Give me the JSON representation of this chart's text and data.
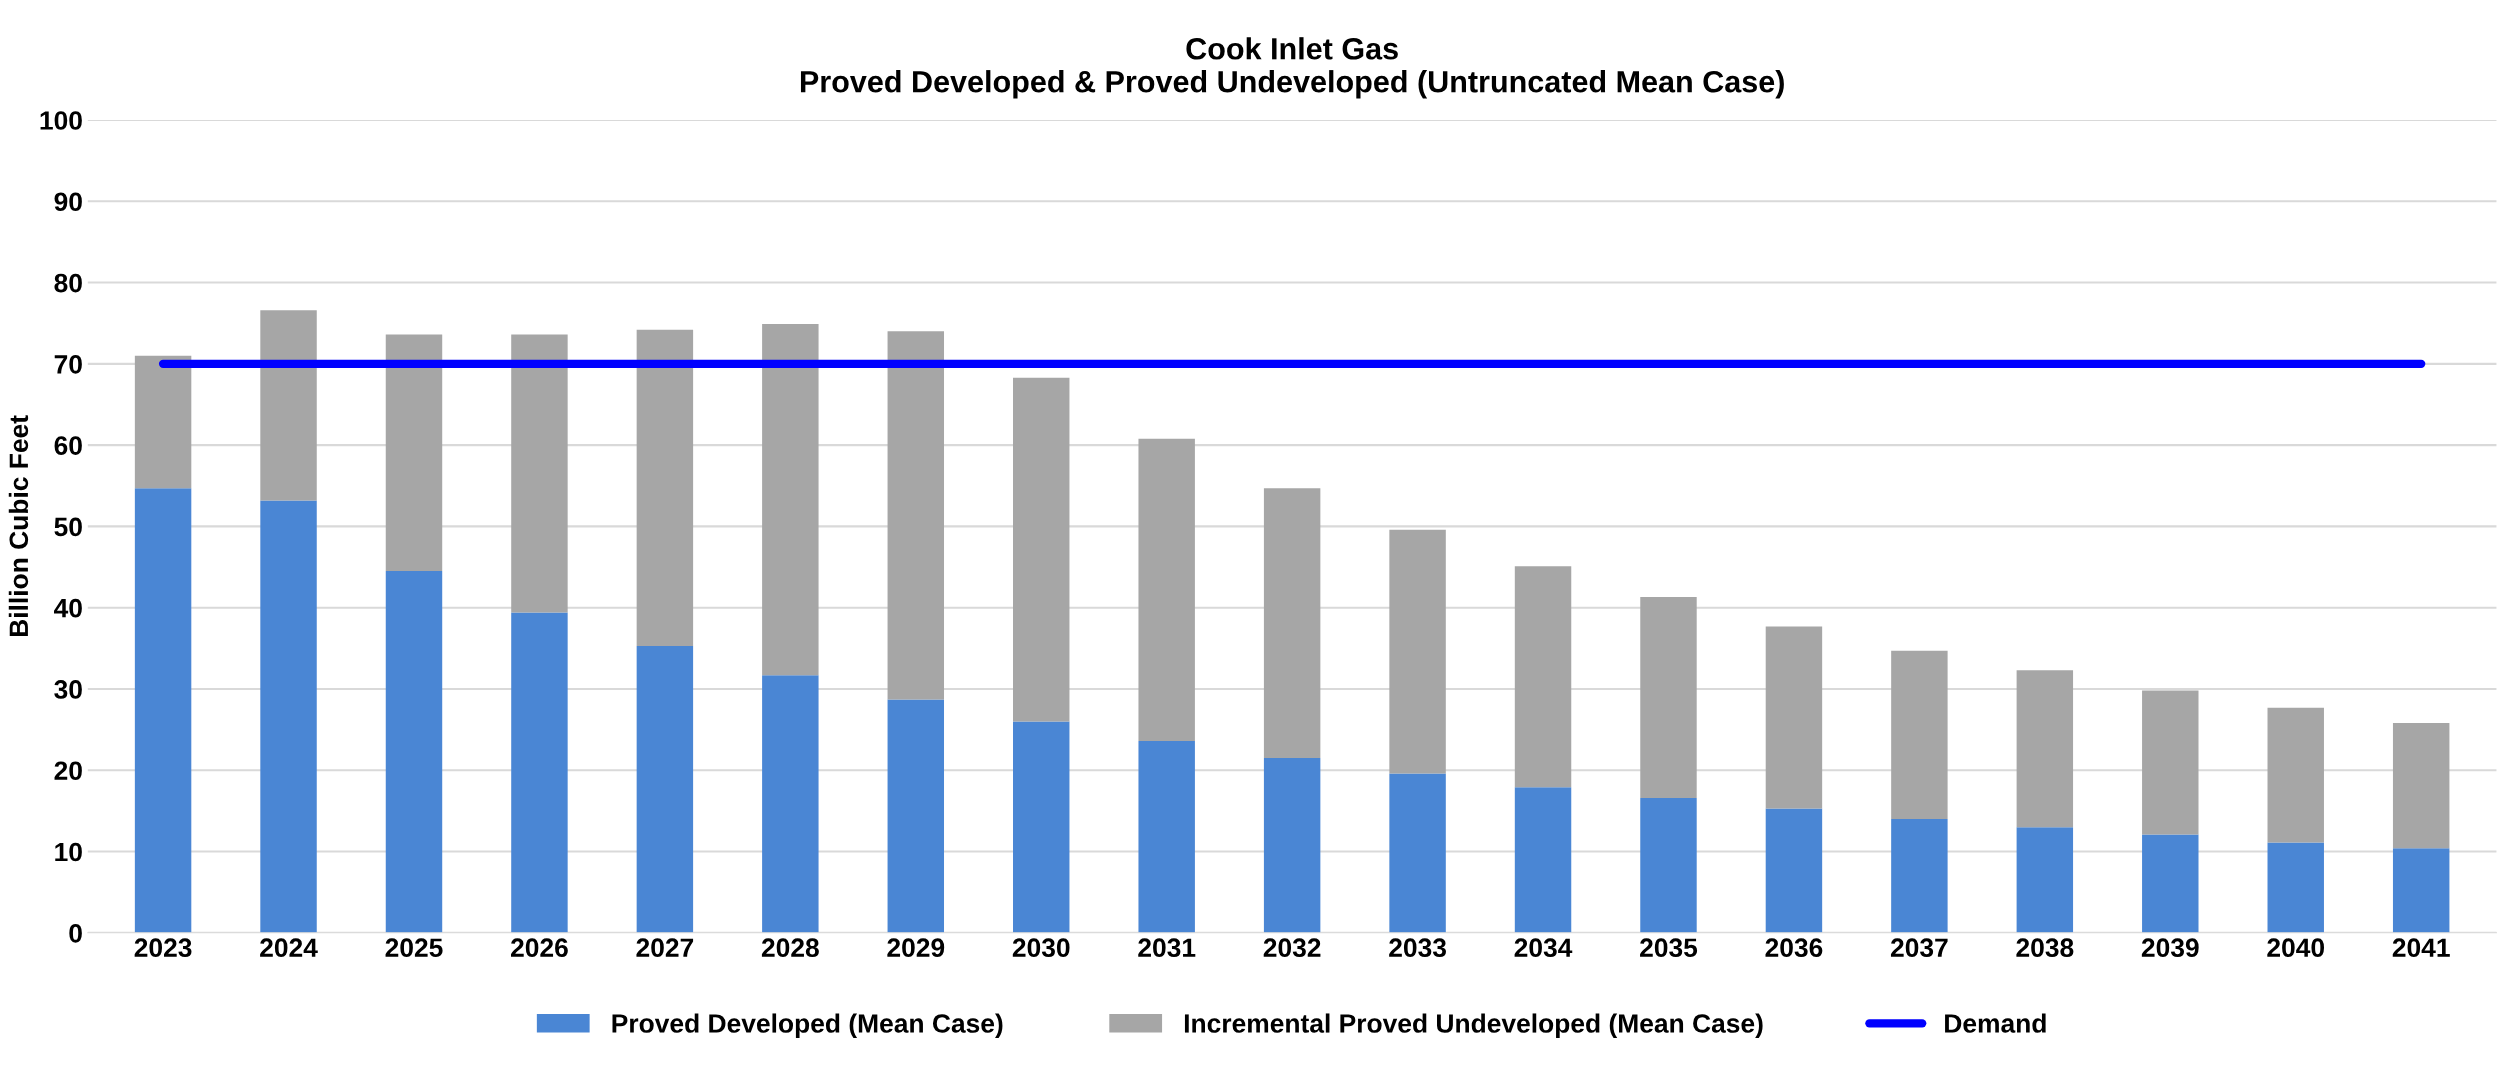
{
  "chart_data": {
    "type": "bar",
    "stacked": true,
    "title": "Cook Inlet Gas\nProved Developed & Proved Undeveloped (Untruncated Mean Case)",
    "ylabel": "Billion Cubic Feet",
    "categories": [
      "2023",
      "2024",
      "2025",
      "2026",
      "2027",
      "2028",
      "2029",
      "2030",
      "2031",
      "2032",
      "2033",
      "2034",
      "2035",
      "2036",
      "2037",
      "2038",
      "2039",
      "2040",
      "2041"
    ],
    "series": [
      {
        "name": "Proved Developed (Mean Case)",
        "color": "#4a86d4",
        "values": [
          54.7,
          53.2,
          44.5,
          39.4,
          35.3,
          31.7,
          28.7,
          26.0,
          23.6,
          21.5,
          19.6,
          17.9,
          16.6,
          15.3,
          14.0,
          13.0,
          12.1,
          11.1,
          10.4
        ]
      },
      {
        "name": "Incremental Proved Undeveloped (Mean Case)",
        "color": "#a6a6a6",
        "values": [
          16.3,
          23.4,
          29.1,
          34.2,
          38.9,
          43.2,
          45.3,
          42.3,
          37.2,
          33.2,
          30.0,
          27.2,
          24.7,
          22.4,
          20.7,
          19.3,
          17.7,
          16.6,
          15.4
        ]
      },
      {
        "name": "Demand",
        "type": "line",
        "color": "#0000ff",
        "values": [
          70,
          70,
          70,
          70,
          70,
          70,
          70,
          70,
          70,
          70,
          70,
          70,
          70,
          70,
          70,
          70,
          70,
          70,
          70
        ]
      }
    ],
    "ylim": [
      0,
      100
    ],
    "yticks": [
      0,
      10,
      20,
      30,
      40,
      50,
      60,
      70,
      80,
      90,
      100
    ],
    "grid": "y",
    "legend": "bottom"
  }
}
